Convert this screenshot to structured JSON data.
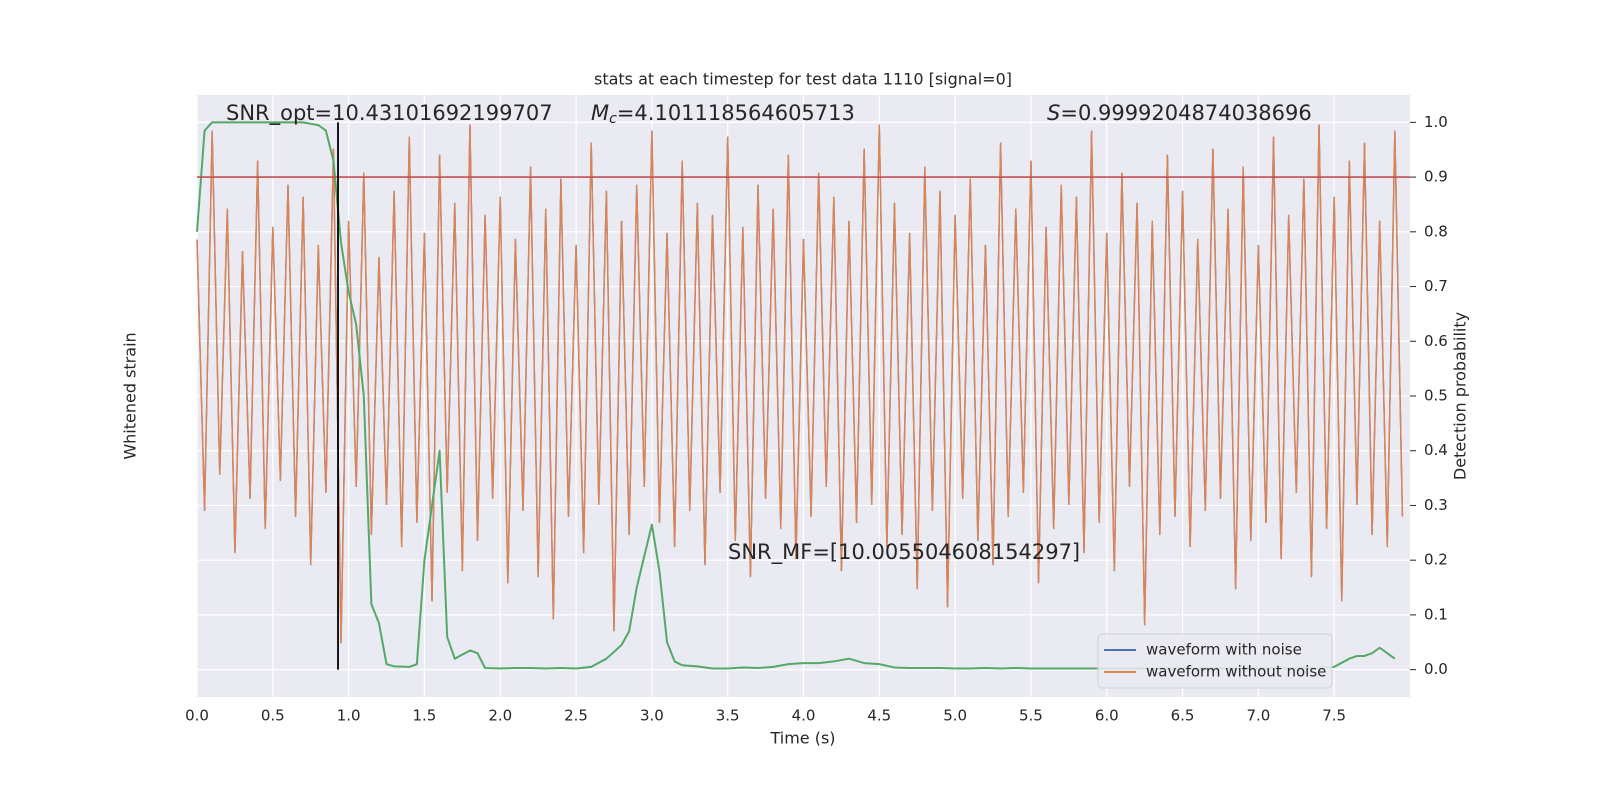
{
  "chart_data": {
    "type": "line",
    "title": "stats at each timestep for test data 1110 [signal=0]",
    "xlabel": "Time (s)",
    "ylabel": "Whitened strain",
    "y2label": "Detection probability",
    "xlim": [
      0,
      8
    ],
    "xticks": [
      {
        "value": 0,
        "label": "0.0"
      },
      0.5,
      {
        "value": 1,
        "label": "1.0"
      },
      1.5,
      {
        "value": 2,
        "label": "2.0"
      },
      2.5,
      {
        "value": 3,
        "label": "3.0"
      },
      3.5,
      {
        "value": 4,
        "label": "4.0"
      },
      4.5,
      {
        "value": 5,
        "label": "5.0"
      },
      5.5,
      {
        "value": 6,
        "label": "6.0"
      },
      6.5,
      {
        "value": 7,
        "label": "7.0"
      },
      7.5
    ],
    "ylim": [
      -5.5,
      4.5
    ],
    "y2lim": [
      -0.05,
      1.05
    ],
    "y2ticks": [
      {
        "value": 0,
        "label": "0.0"
      },
      0.1,
      0.2,
      0.3,
      0.4,
      0.5,
      0.6,
      0.7,
      0.8,
      0.9,
      {
        "value": 1,
        "label": "1.0"
      }
    ],
    "grid": true,
    "background": "#eaeaf2",
    "legend": "lower right",
    "series": [
      {
        "name": "waveform with noise",
        "color": "#4c72b0",
        "x": [
          0,
          0.05,
          0.1,
          0.15,
          0.2,
          0.25,
          0.3,
          0.35,
          0.4,
          0.45,
          0.5,
          0.55,
          0.6,
          0.65,
          0.7,
          0.75,
          0.8,
          0.85,
          0.9,
          0.95,
          1,
          1.05,
          1.1,
          1.15,
          1.2,
          1.25,
          1.3,
          1.35,
          1.4,
          1.45,
          1.5,
          1.55,
          1.6,
          1.65,
          1.7,
          1.75,
          1.8,
          1.85,
          1.9,
          1.95,
          2,
          2.05,
          2.1,
          2.15,
          2.2,
          2.25,
          2.3,
          2.35,
          2.4,
          2.45,
          2.5,
          2.55,
          2.6,
          2.65,
          2.7,
          2.75,
          2.8,
          2.85,
          2.9,
          2.95,
          3,
          3.05,
          3.1,
          3.15,
          3.2,
          3.25,
          3.3,
          3.35,
          3.4,
          3.45,
          3.5,
          3.55,
          3.6,
          3.65,
          3.7,
          3.75,
          3.8,
          3.85,
          3.9,
          3.95,
          4,
          4.05,
          4.1,
          4.15,
          4.2,
          4.25,
          4.3,
          4.35,
          4.4,
          4.45,
          4.5,
          4.55,
          4.6,
          4.65,
          4.7,
          4.75,
          4.8,
          4.85,
          4.9,
          4.95,
          5,
          5.05,
          5.1,
          5.15,
          5.2,
          5.25,
          5.3,
          5.35,
          5.4,
          5.45,
          5.5,
          5.55,
          5.6,
          5.65,
          5.7,
          5.75,
          5.8,
          5.85,
          5.9,
          5.95,
          6,
          6.05,
          6.1,
          6.15,
          6.2,
          6.25,
          6.3,
          6.35,
          6.4,
          6.45,
          6.5,
          6.55,
          6.6,
          6.65,
          6.7,
          6.75,
          6.8,
          6.85,
          6.9,
          6.95,
          7,
          7.05,
          7.1,
          7.15,
          7.2,
          7.25,
          7.3,
          7.35,
          7.4,
          7.45,
          7.5,
          7.55,
          7.6,
          7.65,
          7.7,
          7.75,
          7.8,
          7.85,
          7.9,
          7.95
        ],
        "values": [
          2.1,
          -2.4,
          3.9,
          -1.8,
          2.6,
          -3.1,
          1.9,
          -2.2,
          3.4,
          -2.7,
          2.3,
          -1.9,
          3.0,
          -2.5,
          2.8,
          -3.3,
          2.0,
          -2.1,
          3.6,
          -4.6,
          2.4,
          -2.0,
          3.2,
          -2.8,
          1.8,
          -2.3,
          2.9,
          -3.0,
          3.8,
          -2.6,
          2.2,
          -3.9,
          3.5,
          -2.1,
          2.7,
          -3.4,
          4.0,
          -2.9,
          2.5,
          -2.2,
          2.8,
          -3.6,
          2.1,
          -2.4,
          3.3,
          -3.5,
          2.6,
          -4.2,
          3.1,
          -2.5,
          2.0,
          -3.1,
          3.7,
          -2.3,
          2.9,
          -4.4,
          2.4,
          -2.8,
          3.0,
          -2.0,
          3.9,
          -2.6,
          2.2,
          -3.0,
          3.4,
          -2.4,
          2.7,
          -3.3,
          2.5,
          -2.1,
          3.8,
          -2.9,
          2.3,
          -3.5,
          3.0,
          -2.2,
          2.6,
          -2.7,
          3.5,
          -3.2,
          2.1,
          -2.5,
          3.2,
          -2.0,
          2.8,
          -3.4,
          2.4,
          -2.6,
          3.6,
          -2.3,
          4.0,
          -3.0,
          2.7,
          -2.8,
          2.2,
          -3.7,
          3.3,
          -2.4,
          2.9,
          -4.0,
          2.5,
          -2.2,
          3.1,
          -2.9,
          2.0,
          -3.3,
          3.7,
          -2.5,
          2.6,
          -2.1,
          3.4,
          -3.6,
          2.3,
          -2.7,
          3.0,
          -2.3,
          2.8,
          -3.1,
          3.9,
          -2.6,
          2.2,
          -3.4,
          3.2,
          -2.0,
          2.7,
          -4.3,
          2.4,
          -2.8,
          3.5,
          -2.5,
          2.9,
          -3.0,
          2.1,
          -2.4,
          3.6,
          -2.2,
          2.6,
          -3.7,
          3.3,
          -2.9,
          2.0,
          -2.6,
          3.8,
          -3.2,
          2.5,
          -2.1,
          3.1,
          -3.5,
          4.0,
          -2.7,
          2.8,
          -3.9,
          3.4,
          -2.3,
          3.7,
          -2.8,
          2.4,
          -3.0,
          3.9,
          -2.5
        ]
      },
      {
        "name": "waveform without noise",
        "color": "#dd8452",
        "x": [
          0,
          0.05,
          0.1,
          0.15,
          0.2,
          0.25,
          0.3,
          0.35,
          0.4,
          0.45,
          0.5,
          0.55,
          0.6,
          0.65,
          0.7,
          0.75,
          0.8,
          0.85,
          0.9,
          0.95,
          1,
          1.05,
          1.1,
          1.15,
          1.2,
          1.25,
          1.3,
          1.35,
          1.4,
          1.45,
          1.5,
          1.55,
          1.6,
          1.65,
          1.7,
          1.75,
          1.8,
          1.85,
          1.9,
          1.95,
          2,
          2.05,
          2.1,
          2.15,
          2.2,
          2.25,
          2.3,
          2.35,
          2.4,
          2.45,
          2.5,
          2.55,
          2.6,
          2.65,
          2.7,
          2.75,
          2.8,
          2.85,
          2.9,
          2.95,
          3,
          3.05,
          3.1,
          3.15,
          3.2,
          3.25,
          3.3,
          3.35,
          3.4,
          3.45,
          3.5,
          3.55,
          3.6,
          3.65,
          3.7,
          3.75,
          3.8,
          3.85,
          3.9,
          3.95,
          4,
          4.05,
          4.1,
          4.15,
          4.2,
          4.25,
          4.3,
          4.35,
          4.4,
          4.45,
          4.5,
          4.55,
          4.6,
          4.65,
          4.7,
          4.75,
          4.8,
          4.85,
          4.9,
          4.95,
          5,
          5.05,
          5.1,
          5.15,
          5.2,
          5.25,
          5.3,
          5.35,
          5.4,
          5.45,
          5.5,
          5.55,
          5.6,
          5.65,
          5.7,
          5.75,
          5.8,
          5.85,
          5.9,
          5.95,
          6,
          6.05,
          6.1,
          6.15,
          6.2,
          6.25,
          6.3,
          6.35,
          6.4,
          6.45,
          6.5,
          6.55,
          6.6,
          6.65,
          6.7,
          6.75,
          6.8,
          6.85,
          6.9,
          6.95,
          7,
          7.05,
          7.1,
          7.15,
          7.2,
          7.25,
          7.3,
          7.35,
          7.4,
          7.45,
          7.5,
          7.55,
          7.6,
          7.65,
          7.7,
          7.75,
          7.8,
          7.85,
          7.9,
          7.95
        ],
        "values": [
          2.1,
          -2.4,
          3.9,
          -1.8,
          2.6,
          -3.1,
          1.9,
          -2.2,
          3.4,
          -2.7,
          2.3,
          -1.9,
          3.0,
          -2.5,
          2.8,
          -3.3,
          2.0,
          -2.1,
          3.6,
          -4.6,
          2.4,
          -2.0,
          3.2,
          -2.8,
          1.8,
          -2.3,
          2.9,
          -3.0,
          3.8,
          -2.6,
          2.2,
          -3.9,
          3.5,
          -2.1,
          2.7,
          -3.4,
          4.0,
          -2.9,
          2.5,
          -2.2,
          2.8,
          -3.6,
          2.1,
          -2.4,
          3.3,
          -3.5,
          2.6,
          -4.2,
          3.1,
          -2.5,
          2.0,
          -3.1,
          3.7,
          -2.3,
          2.9,
          -4.4,
          2.4,
          -2.8,
          3.0,
          -2.0,
          3.9,
          -2.6,
          2.2,
          -3.0,
          3.4,
          -2.4,
          2.7,
          -3.3,
          2.5,
          -2.1,
          3.8,
          -2.9,
          2.3,
          -3.5,
          3.0,
          -2.2,
          2.6,
          -2.7,
          3.5,
          -3.2,
          2.1,
          -2.5,
          3.2,
          -2.0,
          2.8,
          -3.4,
          2.4,
          -2.6,
          3.6,
          -2.3,
          4.0,
          -3.0,
          2.7,
          -2.8,
          2.2,
          -3.7,
          3.3,
          -2.4,
          2.9,
          -4.0,
          2.5,
          -2.2,
          3.1,
          -2.9,
          2.0,
          -3.3,
          3.7,
          -2.5,
          2.6,
          -2.1,
          3.4,
          -3.6,
          2.3,
          -2.7,
          3.0,
          -2.3,
          2.8,
          -3.1,
          3.9,
          -2.6,
          2.2,
          -3.4,
          3.2,
          -2.0,
          2.7,
          -4.3,
          2.4,
          -2.8,
          3.5,
          -2.5,
          2.9,
          -3.0,
          2.1,
          -2.4,
          3.6,
          -2.2,
          2.6,
          -3.7,
          3.3,
          -2.9,
          2.0,
          -2.6,
          3.8,
          -3.2,
          2.5,
          -2.1,
          3.1,
          -3.5,
          4.0,
          -2.7,
          2.8,
          -3.9,
          3.4,
          -2.3,
          3.7,
          -2.8,
          2.4,
          -3.0,
          3.9,
          -2.5
        ]
      },
      {
        "color": "#55a868",
        "axis": "y2",
        "x": [
          0,
          0.05,
          0.1,
          0.2,
          0.3,
          0.4,
          0.5,
          0.6,
          0.7,
          0.8,
          0.85,
          0.9,
          0.95,
          1,
          1.05,
          1.1,
          1.15,
          1.2,
          1.25,
          1.3,
          1.4,
          1.45,
          1.5,
          1.6,
          1.65,
          1.7,
          1.8,
          1.85,
          1.9,
          2,
          2.1,
          2.2,
          2.3,
          2.4,
          2.5,
          2.6,
          2.7,
          2.8,
          2.85,
          2.9,
          3,
          3.05,
          3.1,
          3.15,
          3.2,
          3.3,
          3.4,
          3.5,
          3.6,
          3.7,
          3.8,
          3.9,
          4,
          4.1,
          4.2,
          4.3,
          4.4,
          4.5,
          4.6,
          4.7,
          4.8,
          4.9,
          5,
          5.1,
          5.2,
          5.3,
          5.4,
          5.5,
          5.6,
          5.7,
          5.8,
          5.9,
          6,
          6.5,
          7,
          7.4,
          7.5,
          7.6,
          7.65,
          7.7,
          7.75,
          7.8,
          7.85,
          7.9
        ],
        "values": [
          0.8,
          0.985,
          1.0,
          1.0,
          1.0,
          1.0,
          1.0,
          1.0,
          1.0,
          0.995,
          0.985,
          0.93,
          0.78,
          0.69,
          0.63,
          0.5,
          0.12,
          0.085,
          0.01,
          0.006,
          0.005,
          0.01,
          0.2,
          0.4,
          0.06,
          0.02,
          0.035,
          0.03,
          0.003,
          0.002,
          0.003,
          0.003,
          0.002,
          0.003,
          0.002,
          0.005,
          0.02,
          0.045,
          0.07,
          0.15,
          0.265,
          0.18,
          0.05,
          0.015,
          0.008,
          0.006,
          0.002,
          0.002,
          0.004,
          0.003,
          0.005,
          0.01,
          0.012,
          0.012,
          0.015,
          0.02,
          0.012,
          0.01,
          0.004,
          0.003,
          0.003,
          0.003,
          0.002,
          0.002,
          0.003,
          0.002,
          0.003,
          0.002,
          0.002,
          0.002,
          0.002,
          0.002,
          0.002,
          0.002,
          0.002,
          0.003,
          0.005,
          0.02,
          0.025,
          0.025,
          0.03,
          0.04,
          0.03,
          0.02
        ]
      }
    ],
    "hline": {
      "y": 0.9,
      "axis": "y2",
      "color": "#c44e52"
    },
    "vline": {
      "x": 0.93,
      "ymin": 0,
      "ymax": 1,
      "axis": "y2",
      "color": "#000000"
    },
    "annotations": [
      {
        "text": "SNR_opt=10.43101692199707"
      },
      {
        "symbol": "M",
        "subscript": "c",
        "text": "=4.101118564605713"
      },
      {
        "symbol": "S",
        "text": "=0.9999204874038696"
      },
      {
        "text": "SNR_MF=[10.005504608154297]"
      }
    ]
  }
}
